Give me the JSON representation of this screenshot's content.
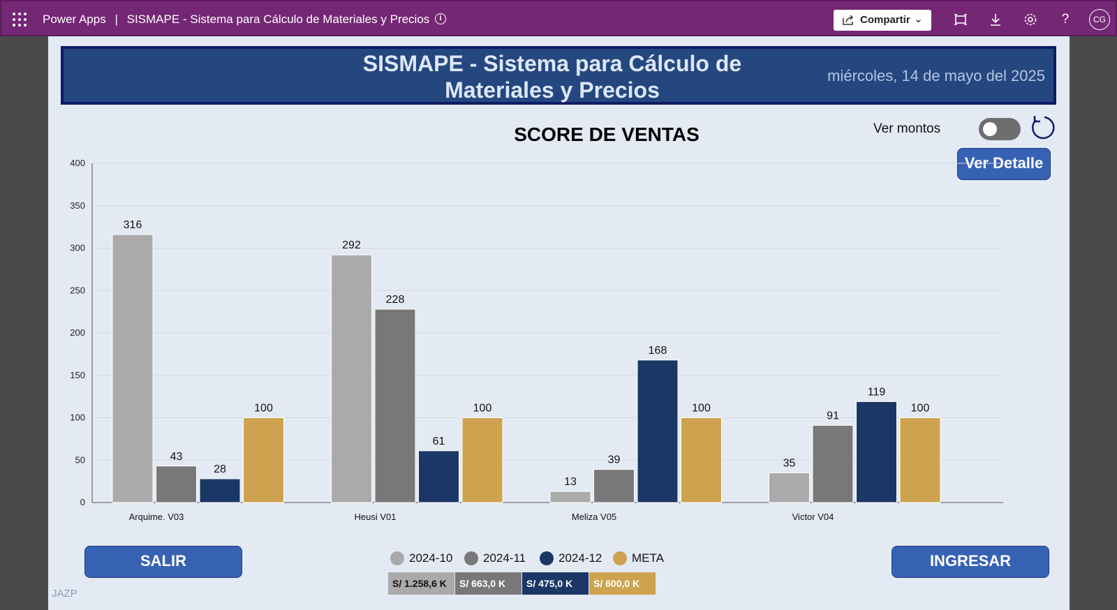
{
  "topbar": {
    "app_name": "Power Apps",
    "separator": "|",
    "app_title": "SISMAPE - Sistema para Cálculo de Materiales y Precios",
    "share_label": "Compartir",
    "avatar_initials": "CG",
    "color": "#742774"
  },
  "header": {
    "title": "SISMAPE - Sistema para Cálculo de Materiales y Precios",
    "date": "miércoles, 14 de mayo del 2025"
  },
  "controls": {
    "ver_montos_label": "Ver montos",
    "toggle_on": false,
    "ver_detalle_label": "Ver Detalle",
    "salir_label": "SALIR",
    "ingresar_label": "INGRESAR",
    "signature": "JAZP"
  },
  "chart_data": {
    "type": "bar",
    "title": "SCORE DE VENTAS",
    "categories": [
      "Arquime. V03",
      "Heusi V01",
      "Meliza V05",
      "Victor V04"
    ],
    "series": [
      {
        "name": "2024-10",
        "color": "#aaaaaa",
        "values": [
          316,
          292,
          13,
          35
        ]
      },
      {
        "name": "2024-11",
        "color": "#787878",
        "values": [
          43,
          228,
          39,
          91
        ]
      },
      {
        "name": "2024-12",
        "color": "#1a3766",
        "values": [
          28,
          61,
          168,
          119
        ]
      },
      {
        "name": "META",
        "color": "#cda34f",
        "values": [
          100,
          100,
          100,
          100
        ]
      }
    ],
    "ylim": [
      0,
      400
    ],
    "yticks": [
      0,
      50,
      100,
      150,
      200,
      250,
      300,
      350,
      400
    ],
    "grid": true,
    "legend_position": "bottom"
  },
  "totals": [
    {
      "label": "S/ 1.258,6 K",
      "color": "#aaaaaa"
    },
    {
      "label": "S/ 663,0 K",
      "color": "#787878"
    },
    {
      "label": "S/ 475,0 K",
      "color": "#1a3766"
    },
    {
      "label": "S/ 600,0 K",
      "color": "#cda34f"
    }
  ]
}
